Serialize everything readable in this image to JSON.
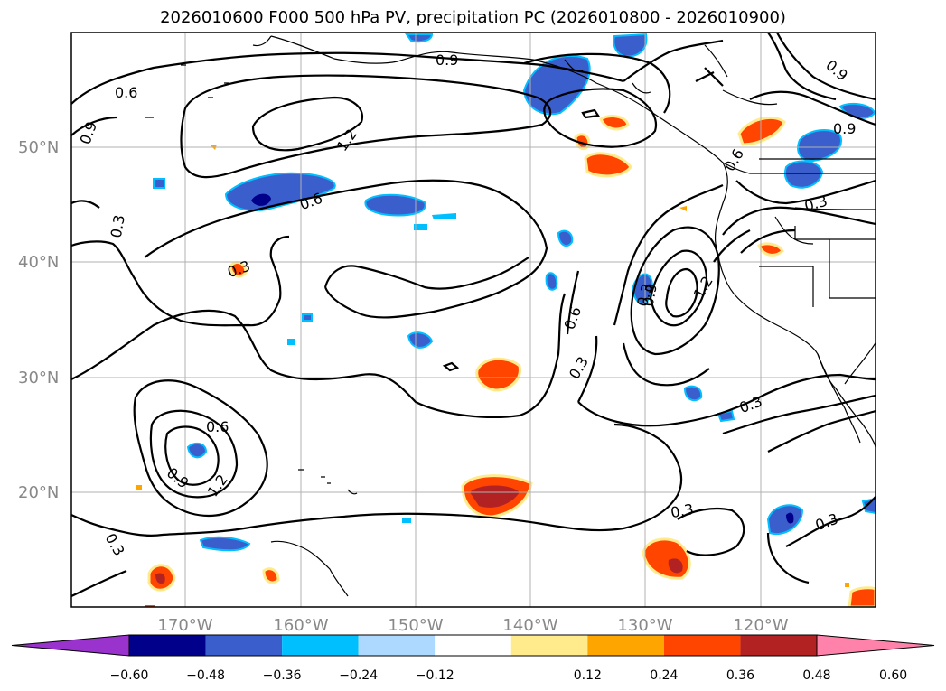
{
  "title": "2026010600 F000 500 hPa PV, precipitation PC (2026010800 - 2026010900)",
  "axes": {
    "lat_ticks": [
      "50°N",
      "40°N",
      "30°N",
      "20°N"
    ],
    "lon_ticks": [
      "170°W",
      "160°W",
      "150°W",
      "140°W",
      "130°W",
      "120°W"
    ],
    "lat_range": [
      10,
      60
    ],
    "lon_range": [
      -180,
      -110
    ],
    "grid": true
  },
  "contour_labels": [
    "0.9",
    "0.6",
    "0.9",
    "1.2",
    "0.6",
    "0.3",
    "0.3",
    "0.9",
    "0.9",
    "0.6",
    "0.3",
    "0.3",
    "0.6",
    "0.3",
    "0.6",
    "0.9",
    "1.2",
    "0.9",
    "1.2",
    "0.3",
    "0.3",
    "0.3",
    "0.3"
  ],
  "colorbar": {
    "ticks": [
      "−0.60",
      "−0.48",
      "−0.36",
      "−0.24",
      "−0.12",
      "0.12",
      "0.24",
      "0.36",
      "0.48",
      "0.60"
    ],
    "colors": [
      "#9a32cd",
      "#00008b",
      "#3a5fcd",
      "#00bfff",
      "#add8ff",
      "#ffffff",
      "#ffeb8c",
      "#ffa500",
      "#ff4500",
      "#b22222",
      "#ff82ab"
    ],
    "extend": "both"
  }
}
